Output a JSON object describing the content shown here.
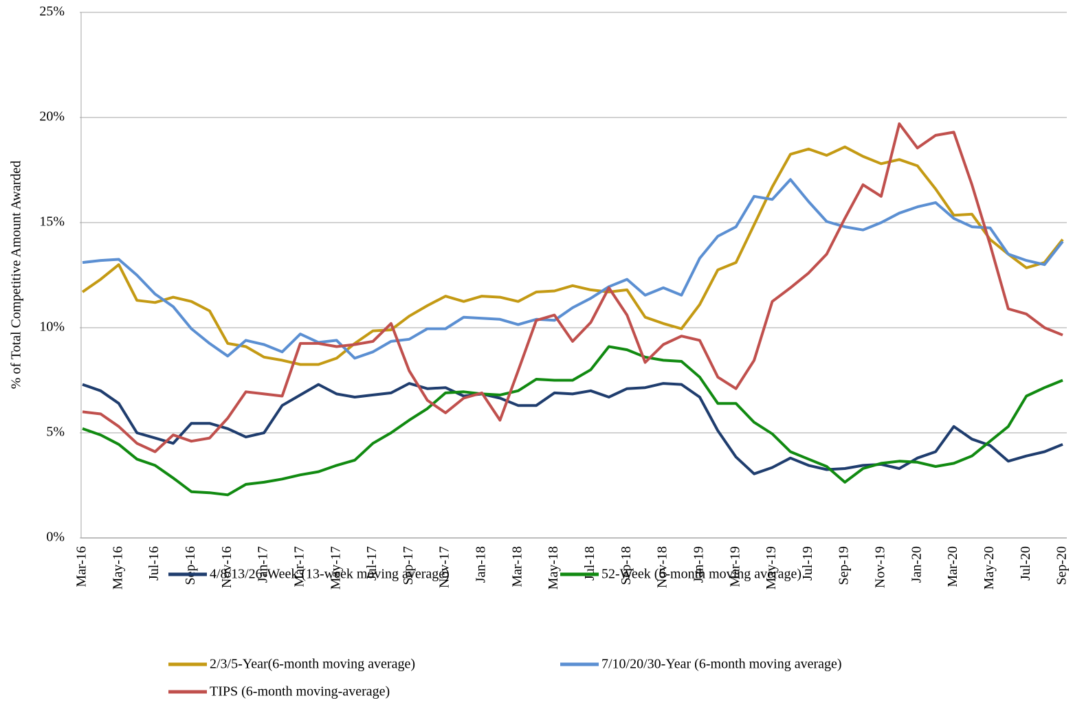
{
  "chart_data": {
    "type": "line",
    "y_label": "% of Total Competitive Amount Awarded",
    "categories": [
      "Mar-16",
      null,
      "May-16",
      null,
      "Jul-16",
      null,
      "Sep-16",
      null,
      "Nov-16",
      null,
      "Jan-17",
      null,
      "Mar-17",
      null,
      "May-17",
      null,
      "Jul-17",
      null,
      "Sep-17",
      null,
      "Nov-17",
      null,
      "Jan-18",
      null,
      "Mar-18",
      null,
      "May-18",
      null,
      "Jul-18",
      null,
      "Sep-18",
      null,
      "Nov-18",
      null,
      "Jan-19",
      null,
      "Mar-19",
      null,
      "May-19",
      null,
      "Jul-19",
      null,
      "Sep-19",
      null,
      "Nov-19",
      null,
      "Jan-20",
      null,
      "Mar-20",
      null,
      "May-20",
      null,
      "Jul-20",
      null,
      "Sep-20"
    ],
    "ylim": [
      0,
      25
    ],
    "yticks": [
      {
        "value": 0,
        "label": "0%"
      },
      {
        "value": 5,
        "label": "5%"
      },
      {
        "value": 10,
        "label": "10%"
      },
      {
        "value": 15,
        "label": "15%"
      },
      {
        "value": 20,
        "label": "20%"
      },
      {
        "value": 25,
        "label": "25%"
      }
    ],
    "grid": true,
    "legend": "bottom",
    "series": [
      {
        "name": "4/8/13/26-Week (13-week moving average)",
        "color": "#1f3d6e",
        "values": [
          7.3,
          7.0,
          6.4,
          5.0,
          4.75,
          4.5,
          5.45,
          5.45,
          5.2,
          4.8,
          5.0,
          6.3,
          6.8,
          7.3,
          6.85,
          6.7,
          6.8,
          6.9,
          7.35,
          7.1,
          7.15,
          6.75,
          6.85,
          6.65,
          6.3,
          6.3,
          6.9,
          6.85,
          7.0,
          6.7,
          7.1,
          7.15,
          7.35,
          7.3,
          6.7,
          5.1,
          3.85,
          3.05,
          3.35,
          3.8,
          3.45,
          3.25,
          3.3,
          3.45,
          3.5,
          3.3,
          3.8,
          4.1,
          5.3,
          4.7,
          4.4,
          3.65,
          3.9,
          4.1,
          4.45
        ]
      },
      {
        "name": "52-Week (6-month moving average)",
        "color": "#118a11",
        "values": [
          5.2,
          4.9,
          4.45,
          3.75,
          3.45,
          2.85,
          2.2,
          2.15,
          2.05,
          2.55,
          2.65,
          2.8,
          3.0,
          3.15,
          3.45,
          3.7,
          4.5,
          5.0,
          5.6,
          6.15,
          6.9,
          6.95,
          6.85,
          6.8,
          7.0,
          7.55,
          7.5,
          7.5,
          8.0,
          9.1,
          8.95,
          8.6,
          8.45,
          8.4,
          7.65,
          6.4,
          6.4,
          5.5,
          4.95,
          4.1,
          3.75,
          3.4,
          2.65,
          3.3,
          3.55,
          3.65,
          3.6,
          3.4,
          3.55,
          3.9,
          4.6,
          5.3,
          6.75,
          7.15,
          7.5
        ]
      },
      {
        "name": "2/3/5-Year(6-month moving average)",
        "color": "#c49a14",
        "values": [
          11.7,
          12.3,
          13.0,
          11.3,
          11.2,
          11.45,
          11.25,
          10.8,
          9.25,
          9.1,
          8.6,
          8.45,
          8.25,
          8.25,
          8.55,
          9.25,
          9.85,
          9.9,
          10.55,
          11.05,
          11.5,
          11.25,
          11.5,
          11.45,
          11.25,
          11.7,
          11.75,
          12.0,
          11.8,
          11.7,
          11.8,
          10.5,
          10.2,
          9.95,
          11.1,
          12.75,
          13.1,
          14.9,
          16.7,
          18.25,
          18.5,
          18.2,
          18.6,
          18.15,
          17.8,
          18.0,
          17.7,
          16.6,
          15.35,
          15.4,
          14.2,
          13.5,
          12.85,
          13.1,
          14.2
        ]
      },
      {
        "name": "7/10/20/30-Year (6-month moving average)",
        "color": "#5b8fd2",
        "values": [
          13.1,
          13.2,
          13.25,
          12.5,
          11.6,
          11.0,
          9.95,
          9.25,
          8.65,
          9.4,
          9.2,
          8.85,
          9.7,
          9.3,
          9.4,
          8.55,
          8.85,
          9.35,
          9.45,
          9.95,
          9.95,
          10.5,
          10.45,
          10.4,
          10.15,
          10.4,
          10.35,
          10.95,
          11.4,
          11.95,
          12.3,
          11.55,
          11.9,
          11.55,
          13.3,
          14.35,
          14.8,
          16.25,
          16.1,
          17.05,
          16.0,
          15.05,
          14.8,
          14.65,
          15.0,
          15.45,
          15.75,
          15.95,
          15.2,
          14.8,
          14.75,
          13.5,
          13.2,
          13.0,
          14.1
        ]
      },
      {
        "name": "TIPS (6-month moving-average)",
        "color": "#c0504d",
        "values": [
          6.0,
          5.9,
          5.3,
          4.5,
          4.1,
          4.9,
          4.6,
          4.75,
          5.7,
          6.95,
          6.85,
          6.75,
          9.25,
          9.25,
          9.1,
          9.2,
          9.35,
          10.2,
          7.95,
          6.55,
          5.95,
          6.65,
          6.9,
          5.6,
          7.95,
          10.35,
          10.6,
          9.35,
          10.25,
          11.9,
          10.6,
          8.35,
          9.2,
          9.6,
          9.4,
          7.65,
          7.1,
          8.45,
          11.25,
          11.9,
          12.6,
          13.5,
          15.2,
          16.8,
          16.25,
          19.7,
          18.55,
          19.15,
          19.3,
          16.8,
          13.95,
          10.9,
          10.65,
          10.0,
          9.65
        ]
      }
    ]
  }
}
